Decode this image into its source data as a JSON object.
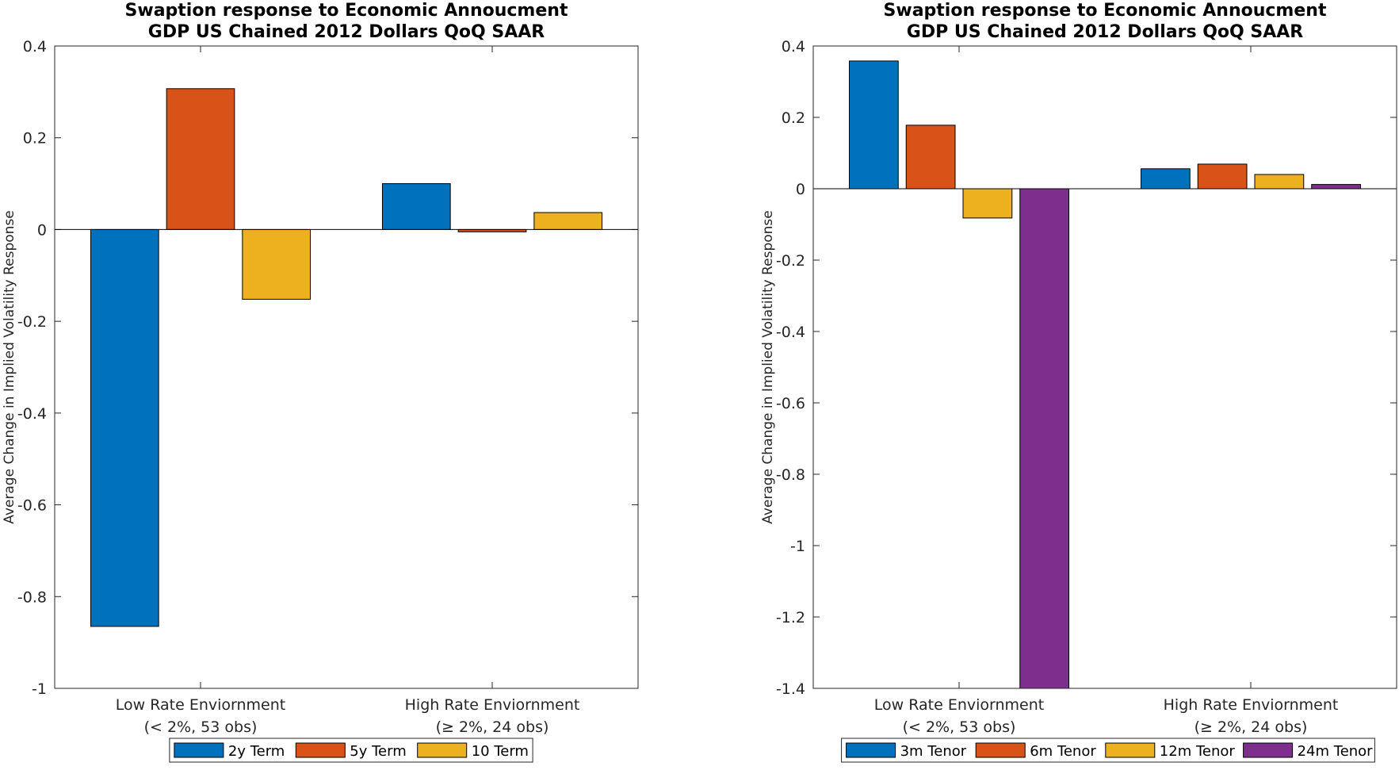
{
  "chart_data": [
    {
      "type": "bar",
      "title_lines": [
        "Swaption response to Economic Annoucment",
        "GDP US Chained 2012 Dollars QoQ SAAR"
      ],
      "ylabel": "Average Change in Implied Volatility Response",
      "xlabel": "",
      "categories": [
        {
          "line1": "Low Rate Enviornment",
          "line2": "(< 2%, 53 obs)"
        },
        {
          "line1": "High Rate Enviornment",
          "line2": "(≥ 2%, 24 obs)"
        }
      ],
      "ylim": [
        -1,
        0.4
      ],
      "yticks": [
        0.4,
        0.2,
        0,
        -0.2,
        -0.4,
        -0.6,
        -0.8,
        -1
      ],
      "ytick_labels": [
        "0.4",
        "0.2",
        "0",
        "-0.2",
        "-0.4",
        "-0.6",
        "-0.8",
        "-1"
      ],
      "series": [
        {
          "name": "2y Term",
          "color": "#0072BD",
          "values": [
            -0.865,
            0.1
          ]
        },
        {
          "name": "5y Term",
          "color": "#D95319",
          "values": [
            0.307,
            -0.005
          ]
        },
        {
          "name": "10 Term",
          "color": "#EDB120",
          "values": [
            -0.152,
            0.037
          ]
        }
      ],
      "legend_location": "bottom-center"
    },
    {
      "type": "bar",
      "title_lines": [
        "Swaption response to Economic Annoucment",
        "GDP US Chained 2012 Dollars QoQ SAAR"
      ],
      "ylabel": "Average Change in Implied Volatility Response",
      "xlabel": "",
      "categories": [
        {
          "line1": "Low Rate Enviornment",
          "line2": "(< 2%, 53 obs)"
        },
        {
          "line1": "High Rate Enviornment",
          "line2": "(≥ 2%, 24 obs)"
        }
      ],
      "ylim": [
        -1.4,
        0.4
      ],
      "yticks": [
        0.4,
        0.2,
        0,
        -0.2,
        -0.4,
        -0.6,
        -0.8,
        -1,
        -1.2,
        -1.4
      ],
      "ytick_labels": [
        "0.4",
        "0.2",
        "0",
        "-0.2",
        "-0.4",
        "-0.6",
        "-0.8",
        "-1",
        "-1.2",
        "-1.4"
      ],
      "series": [
        {
          "name": "3m Tenor",
          "color": "#0072BD",
          "values": [
            0.358,
            0.056
          ]
        },
        {
          "name": "6m Tenor",
          "color": "#D95319",
          "values": [
            0.178,
            0.069
          ]
        },
        {
          "name": "12m Tenor",
          "color": "#EDB120",
          "values": [
            -0.082,
            0.04
          ]
        },
        {
          "name": "24m Tenor",
          "color": "#7E2F8E",
          "values": [
            -1.4,
            0.012
          ]
        }
      ],
      "legend_location": "bottom-center"
    }
  ]
}
